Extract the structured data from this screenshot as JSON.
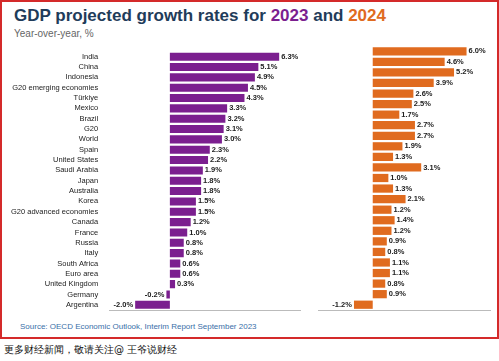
{
  "chart_data": {
    "type": "bar",
    "orientation": "horizontal",
    "title": "GDP projected growth rates for 2023 and 2024",
    "subtitle": "Year-over-year, %",
    "source": "Source: OECD Economic Outlook, Interim Report September 2023",
    "caption": "更多财经新闻，敬请关注@ 王爷说财经",
    "categories": [
      "India",
      "China",
      "Indonesia",
      "G20 emerging economies",
      "Türkiye",
      "Mexico",
      "Brazil",
      "G20",
      "World",
      "Spain",
      "United States",
      "Saudi Arabia",
      "Japan",
      "Australia",
      "Korea",
      "G20 advanced economies",
      "Canada",
      "France",
      "Russia",
      "Italy",
      "South Africa",
      "Euro area",
      "United Kingdom",
      "Germany",
      "Argentina"
    ],
    "series": [
      {
        "name": "2023",
        "color": "#7b1f8f",
        "values": [
          6.3,
          5.1,
          4.9,
          4.5,
          4.3,
          3.3,
          3.2,
          3.1,
          3.0,
          2.3,
          2.2,
          1.9,
          1.8,
          1.8,
          1.5,
          1.5,
          1.2,
          1.0,
          0.8,
          0.8,
          0.6,
          0.6,
          0.3,
          -0.2,
          -2.0
        ],
        "value_labels": [
          "6.3%",
          "5.1%",
          "4.9%",
          "4.5%",
          "4.3%",
          "3.3%",
          "3.2%",
          "3.1%",
          "3.0%",
          "2.3%",
          "2.2%",
          "1.9%",
          "1.8%",
          "1.8%",
          "1.5%",
          "1.5%",
          "1.2%",
          "1.0%",
          "0.8%",
          "0.8%",
          "0.6%",
          "0.6%",
          "0.3%",
          "-0.2%",
          "-2.0%"
        ]
      },
      {
        "name": "2024",
        "color": "#e06b1f",
        "values": [
          6.0,
          4.6,
          5.2,
          3.9,
          2.6,
          2.5,
          1.7,
          2.7,
          2.7,
          1.9,
          1.3,
          3.1,
          1.0,
          1.3,
          2.1,
          1.2,
          1.4,
          1.2,
          0.9,
          0.8,
          1.1,
          1.1,
          0.8,
          0.9,
          -1.2
        ],
        "value_labels": [
          "6.0%",
          "4.6%",
          "5.2%",
          "3.9%",
          "2.6%",
          "2.5%",
          "1.7%",
          "2.7%",
          "2.7%",
          "1.9%",
          "1.3%",
          "3.1%",
          "1.0%",
          "1.3%",
          "2.1%",
          "1.2%",
          "1.4%",
          "1.2%",
          "0.9%",
          "0.8%",
          "1.1%",
          "1.1%",
          "0.8%",
          "0.9%",
          "-1.2%"
        ]
      }
    ],
    "xlim": [
      -3.5,
      7.5
    ],
    "data_labels": true,
    "tick_labels": "y",
    "grid": false
  }
}
